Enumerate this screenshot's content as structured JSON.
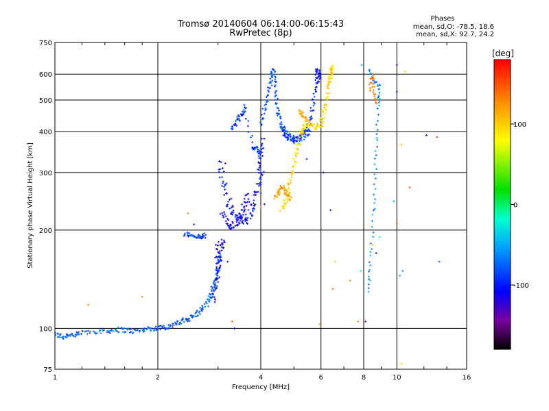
{
  "chart_data": {
    "type": "scatter",
    "title": "Tromsø 20140604 06:14:00-06:15:43",
    "subtitle": "RwPretec (8p)",
    "xlabel": "Frequency [MHz]",
    "ylabel": "Stationary phase Virtual Height [km]",
    "x_scale": "log",
    "y_scale": "log",
    "xlim": [
      1,
      16
    ],
    "ylim": [
      75,
      750
    ],
    "x_ticks": [
      1,
      2,
      4,
      6,
      8,
      10,
      16
    ],
    "x_tick_labels": [
      "1",
      "2",
      "4",
      "6",
      "8",
      "10",
      "16"
    ],
    "y_ticks": [
      75,
      100,
      200,
      300,
      400,
      500,
      600,
      750
    ],
    "y_tick_labels": [
      "75",
      "100",
      "200",
      "300",
      "400",
      "500",
      "600",
      "750"
    ],
    "grid": true,
    "phases": {
      "heading": "Phases",
      "line_O": "mean, sd,O: -78.5, 18.6",
      "line_X": "mean, sd,X:  92.7, 24.2"
    },
    "colorbar": {
      "label": "[deg]",
      "range": [
        -180,
        180
      ],
      "ticks": [
        100,
        0,
        -100
      ],
      "tick_labels": [
        "100",
        "0",
        "-100"
      ]
    },
    "traces": [
      {
        "phase": -75,
        "jitter": 0.012,
        "pts": [
          [
            1.0,
            96
          ],
          [
            1.05,
            94
          ],
          [
            1.1,
            96
          ],
          [
            1.15,
            95
          ],
          [
            1.2,
            97
          ],
          [
            1.3,
            98
          ],
          [
            1.4,
            98
          ],
          [
            1.5,
            99
          ],
          [
            1.6,
            99
          ],
          [
            1.7,
            98
          ],
          [
            1.8,
            99
          ],
          [
            1.9,
            100
          ],
          [
            2.0,
            100
          ],
          [
            2.1,
            101
          ],
          [
            2.2,
            102
          ],
          [
            2.3,
            104
          ],
          [
            2.4,
            106
          ],
          [
            2.5,
            108
          ],
          [
            2.6,
            111
          ],
          [
            2.7,
            115
          ],
          [
            2.8,
            120
          ],
          [
            2.85,
            126
          ],
          [
            2.9,
            133
          ],
          [
            2.95,
            140
          ],
          [
            3.0,
            148
          ],
          [
            3.0,
            158
          ],
          [
            3.05,
            170
          ]
        ]
      },
      {
        "phase": -85,
        "jitter": 0.01,
        "pts": [
          [
            2.4,
            195
          ],
          [
            2.5,
            193
          ],
          [
            2.6,
            191
          ],
          [
            2.7,
            190
          ],
          [
            2.75,
            193
          ]
        ]
      },
      {
        "phase": -110,
        "jitter": 0.015,
        "pts": [
          [
            2.9,
            120
          ],
          [
            2.95,
            135
          ],
          [
            3.0,
            150
          ],
          [
            3.05,
            165
          ],
          [
            3.1,
            185
          ],
          [
            3.0,
            180
          ],
          [
            2.95,
            160
          ]
        ]
      },
      {
        "phase": -105,
        "jitter": 0.02,
        "pts": [
          [
            3.05,
            320
          ],
          [
            3.1,
            280
          ],
          [
            3.2,
            250
          ],
          [
            3.3,
            230
          ],
          [
            3.4,
            220
          ],
          [
            3.5,
            215
          ],
          [
            3.6,
            215
          ],
          [
            3.7,
            220
          ],
          [
            3.8,
            235
          ],
          [
            3.9,
            255
          ],
          [
            3.95,
            280
          ],
          [
            4.0,
            300
          ],
          [
            4.0,
            340
          ],
          [
            4.05,
            380
          ]
        ]
      },
      {
        "phase": -110,
        "jitter": 0.018,
        "pts": [
          [
            3.1,
            230
          ],
          [
            3.2,
            210
          ],
          [
            3.3,
            205
          ],
          [
            3.4,
            210
          ],
          [
            3.5,
            225
          ],
          [
            3.6,
            240
          ],
          [
            3.7,
            255
          ]
        ]
      },
      {
        "phase": -90,
        "jitter": 0.012,
        "pts": [
          [
            3.3,
            410
          ],
          [
            3.4,
            430
          ],
          [
            3.5,
            450
          ],
          [
            3.6,
            480
          ],
          [
            3.8,
            360
          ],
          [
            3.9,
            350
          ],
          [
            4.0,
            340
          ]
        ]
      },
      {
        "phase": -80,
        "jitter": 0.012,
        "pts": [
          [
            4.0,
            420
          ],
          [
            4.1,
            470
          ],
          [
            4.2,
            530
          ],
          [
            4.3,
            580
          ],
          [
            4.35,
            620
          ],
          [
            4.4,
            560
          ],
          [
            4.45,
            500
          ],
          [
            4.5,
            450
          ],
          [
            4.6,
            420
          ],
          [
            4.7,
            400
          ],
          [
            4.8,
            390
          ],
          [
            5.0,
            380
          ],
          [
            5.2,
            380
          ],
          [
            5.4,
            390
          ],
          [
            5.6,
            400
          ]
        ]
      },
      {
        "phase": -100,
        "jitter": 0.012,
        "pts": [
          [
            4.6,
            400
          ],
          [
            4.8,
            385
          ],
          [
            5.0,
            375
          ],
          [
            5.2,
            380
          ],
          [
            5.4,
            400
          ],
          [
            5.6,
            440
          ],
          [
            5.7,
            500
          ],
          [
            5.8,
            560
          ],
          [
            5.85,
            620
          ],
          [
            5.9,
            600
          ],
          [
            5.95,
            560
          ]
        ]
      },
      {
        "phase": 120,
        "jitter": 0.012,
        "pts": [
          [
            4.4,
            250
          ],
          [
            4.5,
            260
          ],
          [
            4.6,
            270
          ],
          [
            4.7,
            265
          ],
          [
            4.8,
            255
          ],
          [
            4.9,
            250
          ]
        ]
      },
      {
        "phase": 95,
        "jitter": 0.012,
        "pts": [
          [
            4.6,
            230
          ],
          [
            4.7,
            240
          ],
          [
            4.8,
            260
          ],
          [
            4.9,
            290
          ],
          [
            5.0,
            320
          ],
          [
            5.1,
            350
          ],
          [
            5.2,
            380
          ],
          [
            5.3,
            400
          ],
          [
            5.4,
            420
          ],
          [
            5.6,
            420
          ],
          [
            5.8,
            410
          ],
          [
            6.0,
            420
          ],
          [
            6.1,
            450
          ],
          [
            6.2,
            490
          ],
          [
            6.3,
            540
          ],
          [
            6.4,
            590
          ],
          [
            6.5,
            640
          ],
          [
            6.45,
            610
          ],
          [
            6.35,
            560
          ]
        ]
      },
      {
        "phase": 110,
        "jitter": 0.01,
        "pts": [
          [
            5.2,
            460
          ],
          [
            5.3,
            450
          ],
          [
            5.4,
            440
          ],
          [
            5.5,
            425
          ]
        ]
      },
      {
        "phase": -60,
        "jitter": 0.008,
        "pts": [
          [
            8.2,
            130
          ],
          [
            8.4,
            170
          ],
          [
            8.6,
            250
          ],
          [
            8.7,
            350
          ],
          [
            8.8,
            480
          ],
          [
            8.9,
            550
          ],
          [
            8.5,
            580
          ],
          [
            8.3,
            620
          ]
        ]
      },
      {
        "phase": 130,
        "jitter": 0.008,
        "pts": [
          [
            8.3,
            540
          ],
          [
            8.5,
            600
          ],
          [
            8.6,
            520
          ],
          [
            8.7,
            480
          ]
        ]
      }
    ],
    "scattered": [
      {
        "x": 1.25,
        "y": 118,
        "p": 130
      },
      {
        "x": 1.8,
        "y": 125,
        "p": 130
      },
      {
        "x": 2.45,
        "y": 225,
        "p": 130
      },
      {
        "x": 2.55,
        "y": 208,
        "p": -90
      },
      {
        "x": 3.3,
        "y": 105,
        "p": 140
      },
      {
        "x": 3.35,
        "y": 100,
        "p": -110
      },
      {
        "x": 3.2,
        "y": 160,
        "p": -100
      },
      {
        "x": 3.15,
        "y": 320,
        "p": -150
      },
      {
        "x": 4.0,
        "y": 235,
        "p": 140
      },
      {
        "x": 4.1,
        "y": 240,
        "p": -120
      },
      {
        "x": 5.45,
        "y": 330,
        "p": -110
      },
      {
        "x": 6.1,
        "y": 300,
        "p": -120
      },
      {
        "x": 6.4,
        "y": 230,
        "p": -120
      },
      {
        "x": 6.6,
        "y": 160,
        "p": 60
      },
      {
        "x": 6.5,
        "y": 132,
        "p": 140
      },
      {
        "x": 5.95,
        "y": 103,
        "p": 120
      },
      {
        "x": 7.3,
        "y": 140,
        "p": 130
      },
      {
        "x": 7.7,
        "y": 105,
        "p": 130
      },
      {
        "x": 7.85,
        "y": 150,
        "p": -20
      },
      {
        "x": 7.9,
        "y": 640,
        "p": -50
      },
      {
        "x": 8.1,
        "y": 105,
        "p": -150
      },
      {
        "x": 8.35,
        "y": 140,
        "p": -30
      },
      {
        "x": 8.5,
        "y": 180,
        "p": 110
      },
      {
        "x": 8.55,
        "y": 230,
        "p": -90
      },
      {
        "x": 8.7,
        "y": 170,
        "p": -130
      },
      {
        "x": 8.9,
        "y": 190,
        "p": -20
      },
      {
        "x": 9.8,
        "y": 245,
        "p": -50
      },
      {
        "x": 10.0,
        "y": 210,
        "p": 150
      },
      {
        "x": 10.0,
        "y": 640,
        "p": -130
      },
      {
        "x": 10.0,
        "y": 530,
        "p": -100
      },
      {
        "x": 10.3,
        "y": 78,
        "p": 100
      },
      {
        "x": 10.3,
        "y": 365,
        "p": 110
      },
      {
        "x": 10.6,
        "y": 610,
        "p": 100
      },
      {
        "x": 10.9,
        "y": 270,
        "p": 150
      },
      {
        "x": 10.4,
        "y": 150,
        "p": -60
      },
      {
        "x": 12.2,
        "y": 390,
        "p": -110
      },
      {
        "x": 13.1,
        "y": 385,
        "p": 160
      },
      {
        "x": 13.3,
        "y": 160,
        "p": -80
      },
      {
        "x": 10.2,
        "y": 145,
        "p": -40
      }
    ]
  }
}
